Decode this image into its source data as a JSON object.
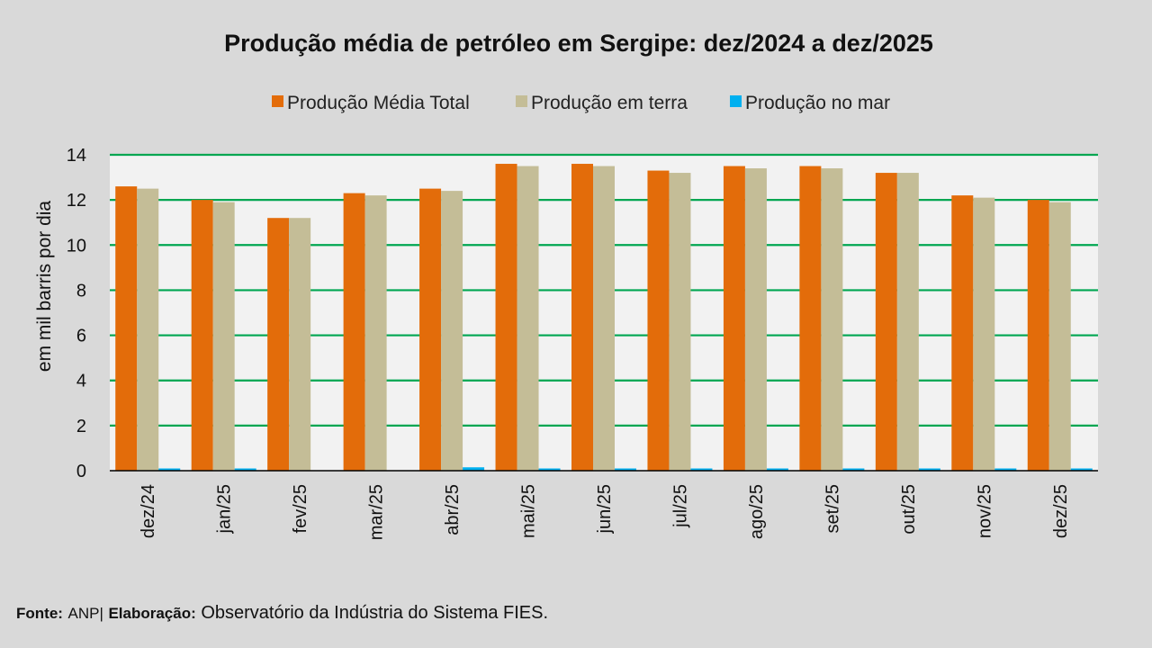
{
  "chart_data": {
    "type": "bar",
    "title": "Produção média de petróleo em Sergipe: dez/2024 a dez/2025",
    "ylabel": "em mil barris por dia",
    "xlabel": "",
    "ylim": [
      0,
      14
    ],
    "yticks": [
      0,
      2,
      4,
      6,
      8,
      10,
      12,
      14
    ],
    "grid": true,
    "legend_position": "top",
    "categories": [
      "dez/24",
      "jan/25",
      "fev/25",
      "mar/25",
      "abr/25",
      "mai/25",
      "jun/25",
      "jul/25",
      "ago/25",
      "set/25",
      "out/25",
      "nov/25",
      "dez/25"
    ],
    "series": [
      {
        "name": "Produção Média Total",
        "color": "#e36c0a",
        "values": [
          12.6,
          12.0,
          11.2,
          12.3,
          12.5,
          13.6,
          13.6,
          13.3,
          13.5,
          13.5,
          13.2,
          12.2,
          12.0
        ]
      },
      {
        "name": "Produção em terra",
        "color": "#c4bd97",
        "values": [
          12.5,
          11.9,
          11.2,
          12.2,
          12.4,
          13.5,
          13.5,
          13.2,
          13.4,
          13.4,
          13.2,
          12.1,
          11.9
        ]
      },
      {
        "name": "Produção no mar",
        "color": "#00b0f0",
        "values": [
          0.1,
          0.1,
          0.0,
          0.0,
          0.15,
          0.1,
          0.1,
          0.1,
          0.1,
          0.1,
          0.1,
          0.1,
          0.1
        ]
      }
    ]
  },
  "footer": {
    "fonte_label": "Fonte:",
    "fonte_value": "ANP|",
    "elab_label": "Elaboração:",
    "elab_value": "Observatório da Indústria do Sistema FIES."
  }
}
